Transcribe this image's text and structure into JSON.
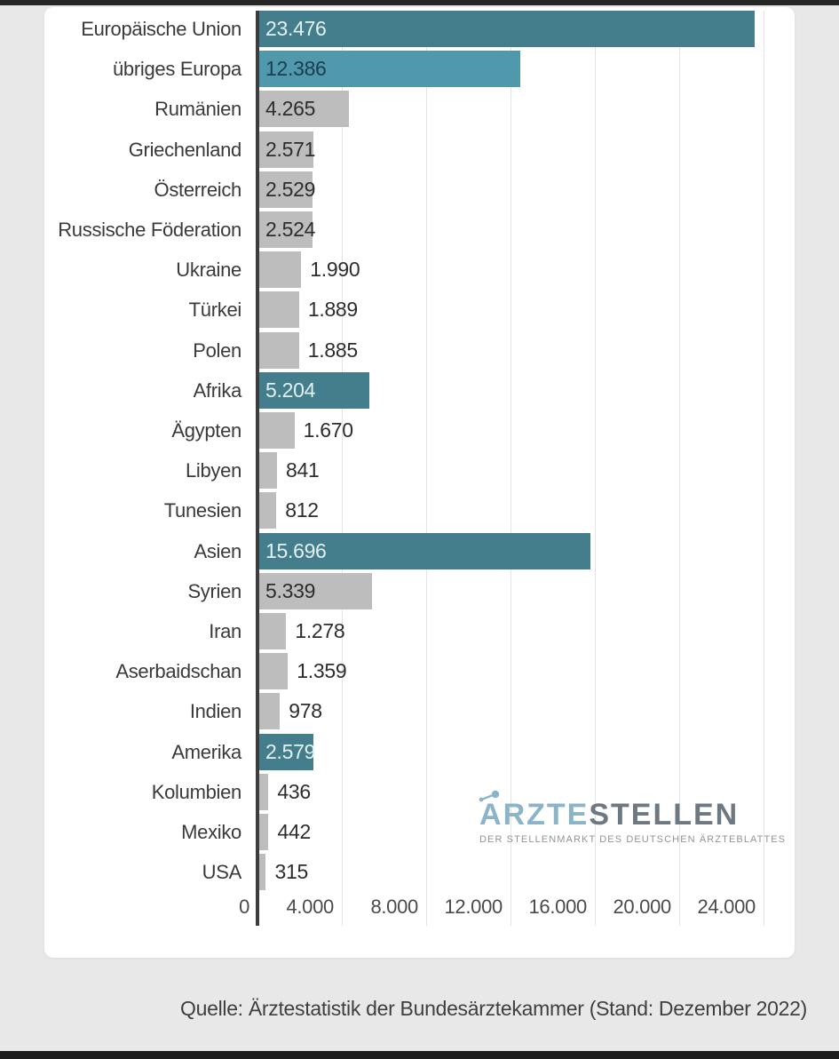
{
  "chart_data": {
    "type": "bar",
    "orientation": "horizontal",
    "xlim": [
      0,
      24000
    ],
    "grid": true,
    "x_ticks": [
      {
        "label": "0",
        "value": 0
      },
      {
        "label": "4.000",
        "value": 4000
      },
      {
        "label": "8.000",
        "value": 8000
      },
      {
        "label": "12.000",
        "value": 12000
      },
      {
        "label": "16.000",
        "value": 16000
      },
      {
        "label": "20.000",
        "value": 20000
      },
      {
        "label": "24.000",
        "value": 24000
      }
    ],
    "rows": [
      {
        "label": "Europäische Union",
        "value": 23476,
        "value_label": "23.476",
        "color_key": "teal"
      },
      {
        "label": "übriges Europa",
        "value": 12386,
        "value_label": "12.386",
        "color_key": "light_teal"
      },
      {
        "label": "Rumänien",
        "value": 4265,
        "value_label": "4.265",
        "color_key": "gray"
      },
      {
        "label": "Griechenland",
        "value": 2571,
        "value_label": "2.571",
        "color_key": "gray"
      },
      {
        "label": "Österreich",
        "value": 2529,
        "value_label": "2.529",
        "color_key": "gray"
      },
      {
        "label": "Russische Föderation",
        "value": 2524,
        "value_label": "2.524",
        "color_key": "gray"
      },
      {
        "label": "Ukraine",
        "value": 1990,
        "value_label": "1.990",
        "color_key": "gray"
      },
      {
        "label": "Türkei",
        "value": 1889,
        "value_label": "1.889",
        "color_key": "gray"
      },
      {
        "label": "Polen",
        "value": 1885,
        "value_label": "1.885",
        "color_key": "gray"
      },
      {
        "label": "Afrika",
        "value": 5204,
        "value_label": "5.204",
        "color_key": "teal"
      },
      {
        "label": "Ägypten",
        "value": 1670,
        "value_label": "1.670",
        "color_key": "gray"
      },
      {
        "label": "Libyen",
        "value": 841,
        "value_label": "841",
        "color_key": "gray"
      },
      {
        "label": "Tunesien",
        "value": 812,
        "value_label": "812",
        "color_key": "gray"
      },
      {
        "label": "Asien",
        "value": 15696,
        "value_label": "15.696",
        "color_key": "teal"
      },
      {
        "label": "Syrien",
        "value": 5339,
        "value_label": "5.339",
        "color_key": "gray"
      },
      {
        "label": "Iran",
        "value": 1278,
        "value_label": "1.278",
        "color_key": "gray"
      },
      {
        "label": "Aserbaidschan",
        "value": 1359,
        "value_label": "1.359",
        "color_key": "gray"
      },
      {
        "label": "Indien",
        "value": 978,
        "value_label": "978",
        "color_key": "gray"
      },
      {
        "label": "Amerika",
        "value": 2579,
        "value_label": "2.579",
        "color_key": "teal"
      },
      {
        "label": "Kolumbien",
        "value": 436,
        "value_label": "436",
        "color_key": "gray"
      },
      {
        "label": "Mexiko",
        "value": 442,
        "value_label": "442",
        "color_key": "gray"
      },
      {
        "label": "USA",
        "value": 315,
        "value_label": "315",
        "color_key": "gray"
      }
    ],
    "colors": {
      "teal": "#447d8c",
      "light_teal": "#5099ac",
      "gray": "#bdbdbd",
      "value_on_teal": "#e4f1f3",
      "value_on_light_teal": "#1c3d4d",
      "value_dark": "#2d2d2d",
      "gridline": "#e4e4e4",
      "axis": "#3d3d3d"
    }
  },
  "logo": {
    "part1": "ÄRZTE",
    "part1_rest": "RZTE",
    "part2": "STELLEN",
    "tagline": "DER STELLENMARKT DES DEUTSCHEN ÄRZTEBLATTES"
  },
  "footer": {
    "source": "Quelle: Ärztestatistik der Bundesärztekammer (Stand: Dezember 2022)"
  }
}
